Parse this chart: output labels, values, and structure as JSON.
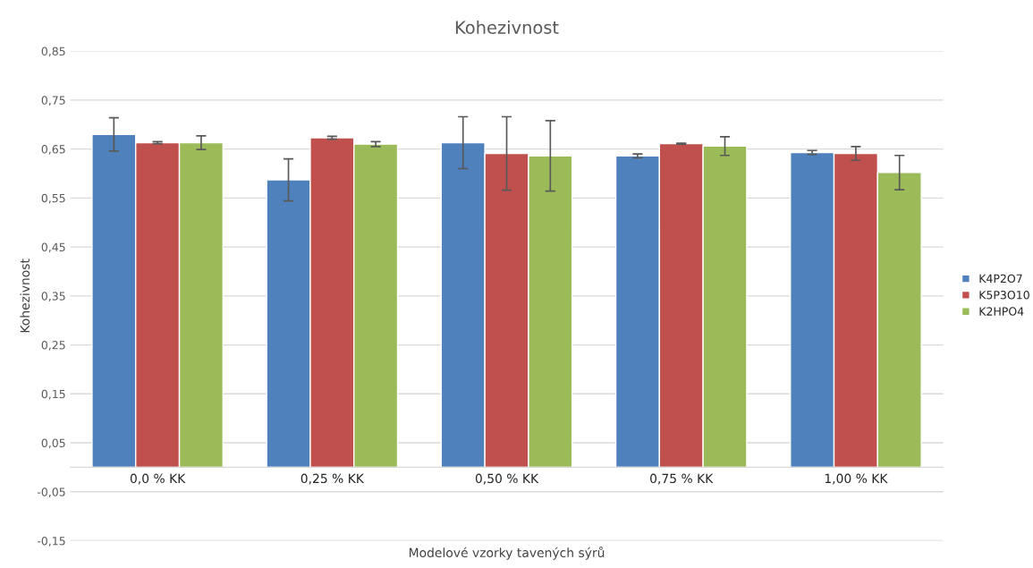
{
  "chart_data": {
    "type": "bar",
    "title": "Kohezivnost",
    "xlabel": "Modelové vzorky tavených sýrů",
    "ylabel": "Kohezivnost",
    "categories": [
      "0,0 % KK",
      "0,25 % KK",
      "0,50 % KK",
      "0,75 % KK",
      "1,00 % KK"
    ],
    "series": [
      {
        "name": "K4P2O7",
        "color": "#4f81bd",
        "values": [
          0.68,
          0.587,
          0.663,
          0.636,
          0.643
        ],
        "errors": [
          0.034,
          0.043,
          0.053,
          0.004,
          0.004
        ]
      },
      {
        "name": "K5P3O10",
        "color": "#c0504d",
        "values": [
          0.663,
          0.673,
          0.641,
          0.661,
          0.641
        ],
        "errors": [
          0.002,
          0.003,
          0.075,
          0.001,
          0.014
        ]
      },
      {
        "name": "K2HPO4",
        "color": "#9bbb59",
        "values": [
          0.663,
          0.66,
          0.636,
          0.656,
          0.602
        ],
        "errors": [
          0.014,
          0.005,
          0.072,
          0.019,
          0.035
        ]
      }
    ],
    "ylim": [
      -0.15,
      0.85
    ],
    "yticks": [
      {
        "value": -0.15,
        "label": "-0,15"
      },
      {
        "value": -0.05,
        "label": "-0,05"
      },
      {
        "value": 0.05,
        "label": "0,05"
      },
      {
        "value": 0.15,
        "label": "0,15"
      },
      {
        "value": 0.25,
        "label": "0,25"
      },
      {
        "value": 0.35,
        "label": "0,35"
      },
      {
        "value": 0.45,
        "label": "0,45"
      },
      {
        "value": 0.55,
        "label": "0,55"
      },
      {
        "value": 0.65,
        "label": "0,65"
      },
      {
        "value": 0.75,
        "label": "0,75"
      },
      {
        "value": 0.85,
        "label": "0,85"
      }
    ],
    "grid": "y",
    "legend": "right"
  }
}
